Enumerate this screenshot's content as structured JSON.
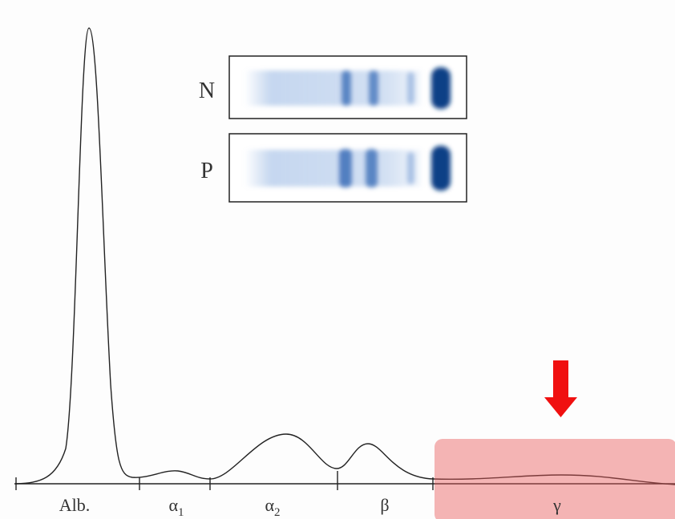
{
  "gel": {
    "rows": [
      {
        "label": "N"
      },
      {
        "label": "P"
      }
    ]
  },
  "fractions": [
    {
      "symbol": "Alb."
    },
    {
      "symbol": "α",
      "subscript": "1"
    },
    {
      "symbol": "α",
      "subscript": "2"
    },
    {
      "symbol": "β"
    },
    {
      "symbol": "γ"
    }
  ]
}
